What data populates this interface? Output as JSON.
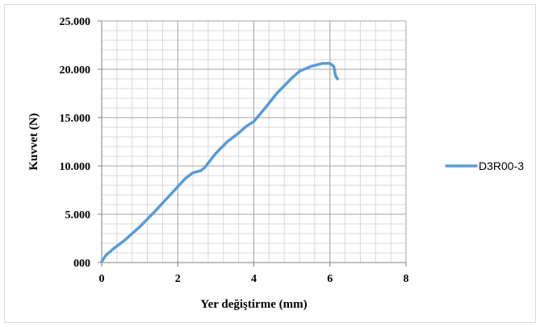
{
  "chart_data": {
    "type": "line",
    "title": "",
    "xlabel": "Yer değiştirme (mm)",
    "ylabel": "Kuvvet (N)",
    "xlim": [
      0,
      8
    ],
    "ylim": [
      0,
      25000
    ],
    "x_ticks": [
      0,
      2,
      4,
      6,
      8
    ],
    "x_tick_labels": [
      "0",
      "2",
      "4",
      "6",
      "8"
    ],
    "y_ticks": [
      0,
      5000,
      10000,
      15000,
      20000,
      25000
    ],
    "y_tick_labels": [
      "000",
      "5.000",
      "10.000",
      "15.000",
      "20.000",
      "25.000"
    ],
    "grid": true,
    "minor_grid": true,
    "legend_position": "right",
    "series": [
      {
        "name": "D3R00-3",
        "color": "#5b9bd5",
        "x": [
          0,
          0.1,
          0.3,
          0.6,
          1.0,
          1.4,
          1.8,
          2.2,
          2.4,
          2.6,
          2.7,
          3.0,
          3.3,
          3.6,
          3.8,
          4.0,
          4.3,
          4.6,
          5.0,
          5.2,
          5.5,
          5.8,
          6.0,
          6.1,
          6.15,
          6.2
        ],
        "y": [
          100,
          700,
          1400,
          2300,
          3700,
          5300,
          7000,
          8700,
          9300,
          9500,
          9800,
          11300,
          12500,
          13400,
          14100,
          14600,
          16000,
          17500,
          19100,
          19800,
          20300,
          20600,
          20600,
          20300,
          19300,
          19000
        ]
      }
    ]
  }
}
